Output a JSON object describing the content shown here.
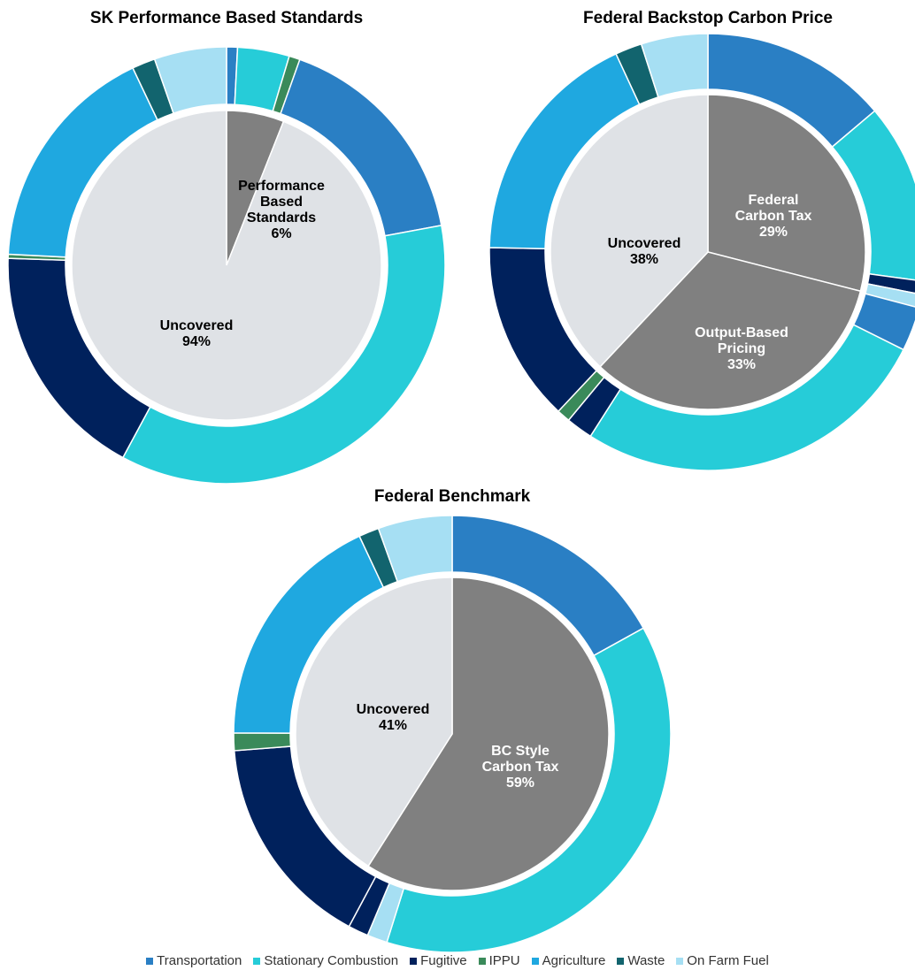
{
  "chart_data": [
    {
      "type": "pie",
      "title": "SK Performance Based Standards",
      "inner": {
        "labels": [
          "Performance Based Standards",
          "Uncovered"
        ],
        "values": [
          6,
          94
        ],
        "value_labels": [
          "6%",
          "94%"
        ],
        "colors": [
          "#808080",
          "#dfe2e6"
        ]
      },
      "ring": [
        {
          "value": 0.8,
          "color": "#2a7fc4"
        },
        {
          "value": 3.8,
          "color": "#26ccd8"
        },
        {
          "value": 0.8,
          "color": "#3a8a5a"
        },
        {
          "value": 16.5,
          "color": "#2a7fc4"
        },
        {
          "value": 35.5,
          "color": "#26ccd8"
        },
        {
          "value": 17.5,
          "color": "#00215c"
        },
        {
          "value": 0.3,
          "color": "#3a8a5a"
        },
        {
          "value": 17,
          "color": "#1fa8e0"
        },
        {
          "value": 1.7,
          "color": "#12646e"
        },
        {
          "value": 5.3,
          "color": "#a6dff3"
        }
      ]
    },
    {
      "type": "pie",
      "title": "Federal Backstop Carbon Price",
      "inner": {
        "labels": [
          "Federal Carbon Tax",
          "Output-Based Pricing",
          "Uncovered"
        ],
        "values": [
          29,
          33,
          38
        ],
        "value_labels": [
          "29%",
          "33%",
          "38%"
        ],
        "colors": [
          "#808080",
          "#808080",
          "#dfe2e6"
        ]
      },
      "ring": [
        {
          "value": 14,
          "color": "#2a7fc4"
        },
        {
          "value": 13.5,
          "color": "#26ccd8"
        },
        {
          "value": 1,
          "color": "#00215c"
        },
        {
          "value": 1,
          "color": "#a6dff3"
        },
        {
          "value": 3.3,
          "color": "#2a7fc4"
        },
        {
          "value": 27,
          "color": "#26ccd8"
        },
        {
          "value": 2,
          "color": "#00215c"
        },
        {
          "value": 1,
          "color": "#3a8a5a"
        },
        {
          "value": 13.5,
          "color": "#00215c"
        },
        {
          "value": 18,
          "color": "#1fa8e0"
        },
        {
          "value": 2,
          "color": "#12646e"
        },
        {
          "value": 5,
          "color": "#a6dff3"
        }
      ]
    },
    {
      "type": "pie",
      "title": "Federal Benchmark",
      "inner": {
        "labels": [
          "BC Style Carbon Tax",
          "Uncovered"
        ],
        "values": [
          59,
          41
        ],
        "value_labels": [
          "59%",
          "41%"
        ],
        "colors": [
          "#808080",
          "#dfe2e6"
        ]
      },
      "ring": [
        {
          "value": 17,
          "color": "#2a7fc4"
        },
        {
          "value": 38,
          "color": "#26ccd8"
        },
        {
          "value": 1.5,
          "color": "#a6dff3"
        },
        {
          "value": 1.5,
          "color": "#00215c"
        },
        {
          "value": 16,
          "color": "#00215c"
        },
        {
          "value": 1.3,
          "color": "#3a8a5a"
        },
        {
          "value": 18,
          "color": "#1fa8e0"
        },
        {
          "value": 1.5,
          "color": "#12646e"
        },
        {
          "value": 5.5,
          "color": "#a6dff3"
        }
      ]
    }
  ],
  "legend": [
    {
      "name": "Transportation",
      "color": "#2a7fc4"
    },
    {
      "name": "Stationary Combustion",
      "color": "#26ccd8"
    },
    {
      "name": "Fugitive",
      "color": "#00215c"
    },
    {
      "name": "IPPU",
      "color": "#3a8a5a"
    },
    {
      "name": "Agriculture",
      "color": "#1fa8e0"
    },
    {
      "name": "Waste",
      "color": "#12646e"
    },
    {
      "name": "On Farm Fuel",
      "color": "#a6dff3"
    }
  ]
}
